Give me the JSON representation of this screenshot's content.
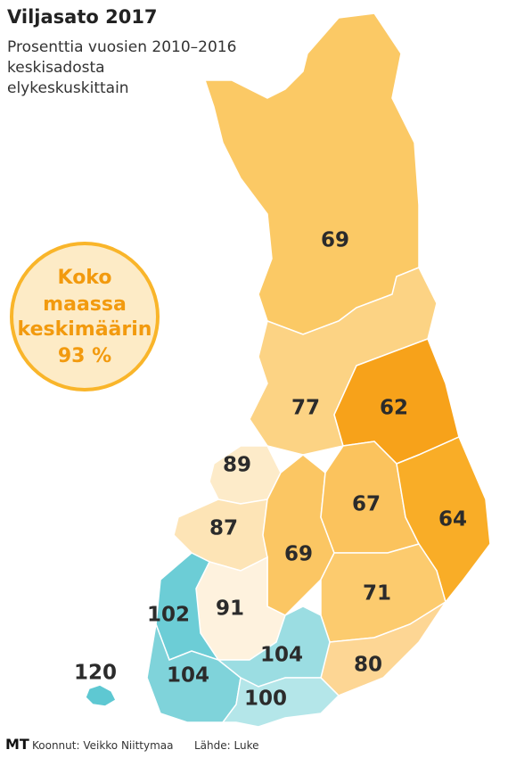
{
  "title": "Viljasato 2017",
  "subtitle": [
    "Prosenttia vuosien 2010–2016",
    "keskisadosta",
    "elykeskuskittain"
  ],
  "callout": {
    "lines": [
      "Koko",
      "maassa",
      "keskimäärin"
    ],
    "value": "93 %"
  },
  "regions": [
    {
      "value": 69,
      "color": "#fbc965"
    },
    {
      "value": 77,
      "color": "#fcd384"
    },
    {
      "value": 62,
      "color": "#f7a21a"
    },
    {
      "value": 89,
      "color": "#fdebc9"
    },
    {
      "value": 87,
      "color": "#fde4b6"
    },
    {
      "value": 69,
      "color": "#fbc663"
    },
    {
      "value": 67,
      "color": "#fbc35d"
    },
    {
      "value": 64,
      "color": "#f9ad27"
    },
    {
      "value": 71,
      "color": "#fccb6e"
    },
    {
      "value": 80,
      "color": "#fdd694"
    },
    {
      "value": 91,
      "color": "#fef2de"
    },
    {
      "value": 102,
      "color": "#6ccdd6"
    },
    {
      "value": 104,
      "color": "#7fd3da"
    },
    {
      "value": 104,
      "color": "#9bdde2"
    },
    {
      "value": 100,
      "color": "#b4e6e9"
    },
    {
      "value": 120,
      "color": "#5ec8d2"
    }
  ],
  "footer": {
    "logo": "MT",
    "credit": "Koonnut: Veikko Niittymaa",
    "source": "Lähde: Luke"
  }
}
